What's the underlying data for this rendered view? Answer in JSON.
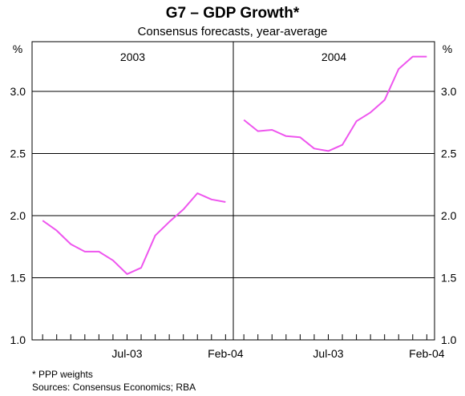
{
  "chart_data": {
    "type": "line",
    "title": "G7 – GDP Growth*",
    "subtitle": "Consensus forecasts, year-average",
    "y_unit": "%",
    "ylim": [
      1.0,
      3.4
    ],
    "yticks": [
      "1.0",
      "1.5",
      "2.0",
      "2.5",
      "3.0"
    ],
    "grid": true,
    "line_color": "#ee55ee",
    "panels": [
      {
        "label": "2003",
        "x_tick_labels": [
          "Jul-03",
          "Feb-04"
        ],
        "series": [
          {
            "x": [
              "Jan-03",
              "Feb-03",
              "Mar-03",
              "Apr-03",
              "May-03",
              "Jun-03",
              "Jul-03",
              "Aug-03",
              "Sep-03",
              "Oct-03",
              "Nov-03",
              "Dec-03",
              "Jan-04",
              "Feb-04"
            ],
            "values": [
              1.96,
              1.88,
              1.77,
              1.71,
              1.71,
              1.64,
              1.53,
              1.58,
              1.84,
              1.95,
              2.05,
              2.18,
              2.13,
              2.11
            ]
          }
        ]
      },
      {
        "label": "2004",
        "x_tick_labels": [
          "Jul-03",
          "Feb-04"
        ],
        "series": [
          {
            "x": [
              "Jan-03",
              "Feb-03",
              "Mar-03",
              "Apr-03",
              "May-03",
              "Jun-03",
              "Jul-03",
              "Aug-03",
              "Sep-03",
              "Oct-03",
              "Nov-03",
              "Dec-03",
              "Jan-04",
              "Feb-04"
            ],
            "values": [
              2.77,
              2.68,
              2.69,
              2.64,
              2.63,
              2.54,
              2.52,
              2.57,
              2.76,
              2.83,
              2.93,
              3.18,
              3.28,
              3.28
            ]
          }
        ]
      }
    ]
  },
  "footnotes": {
    "note": "*   PPP weights",
    "sources": "Sources: Consensus Economics; RBA"
  }
}
